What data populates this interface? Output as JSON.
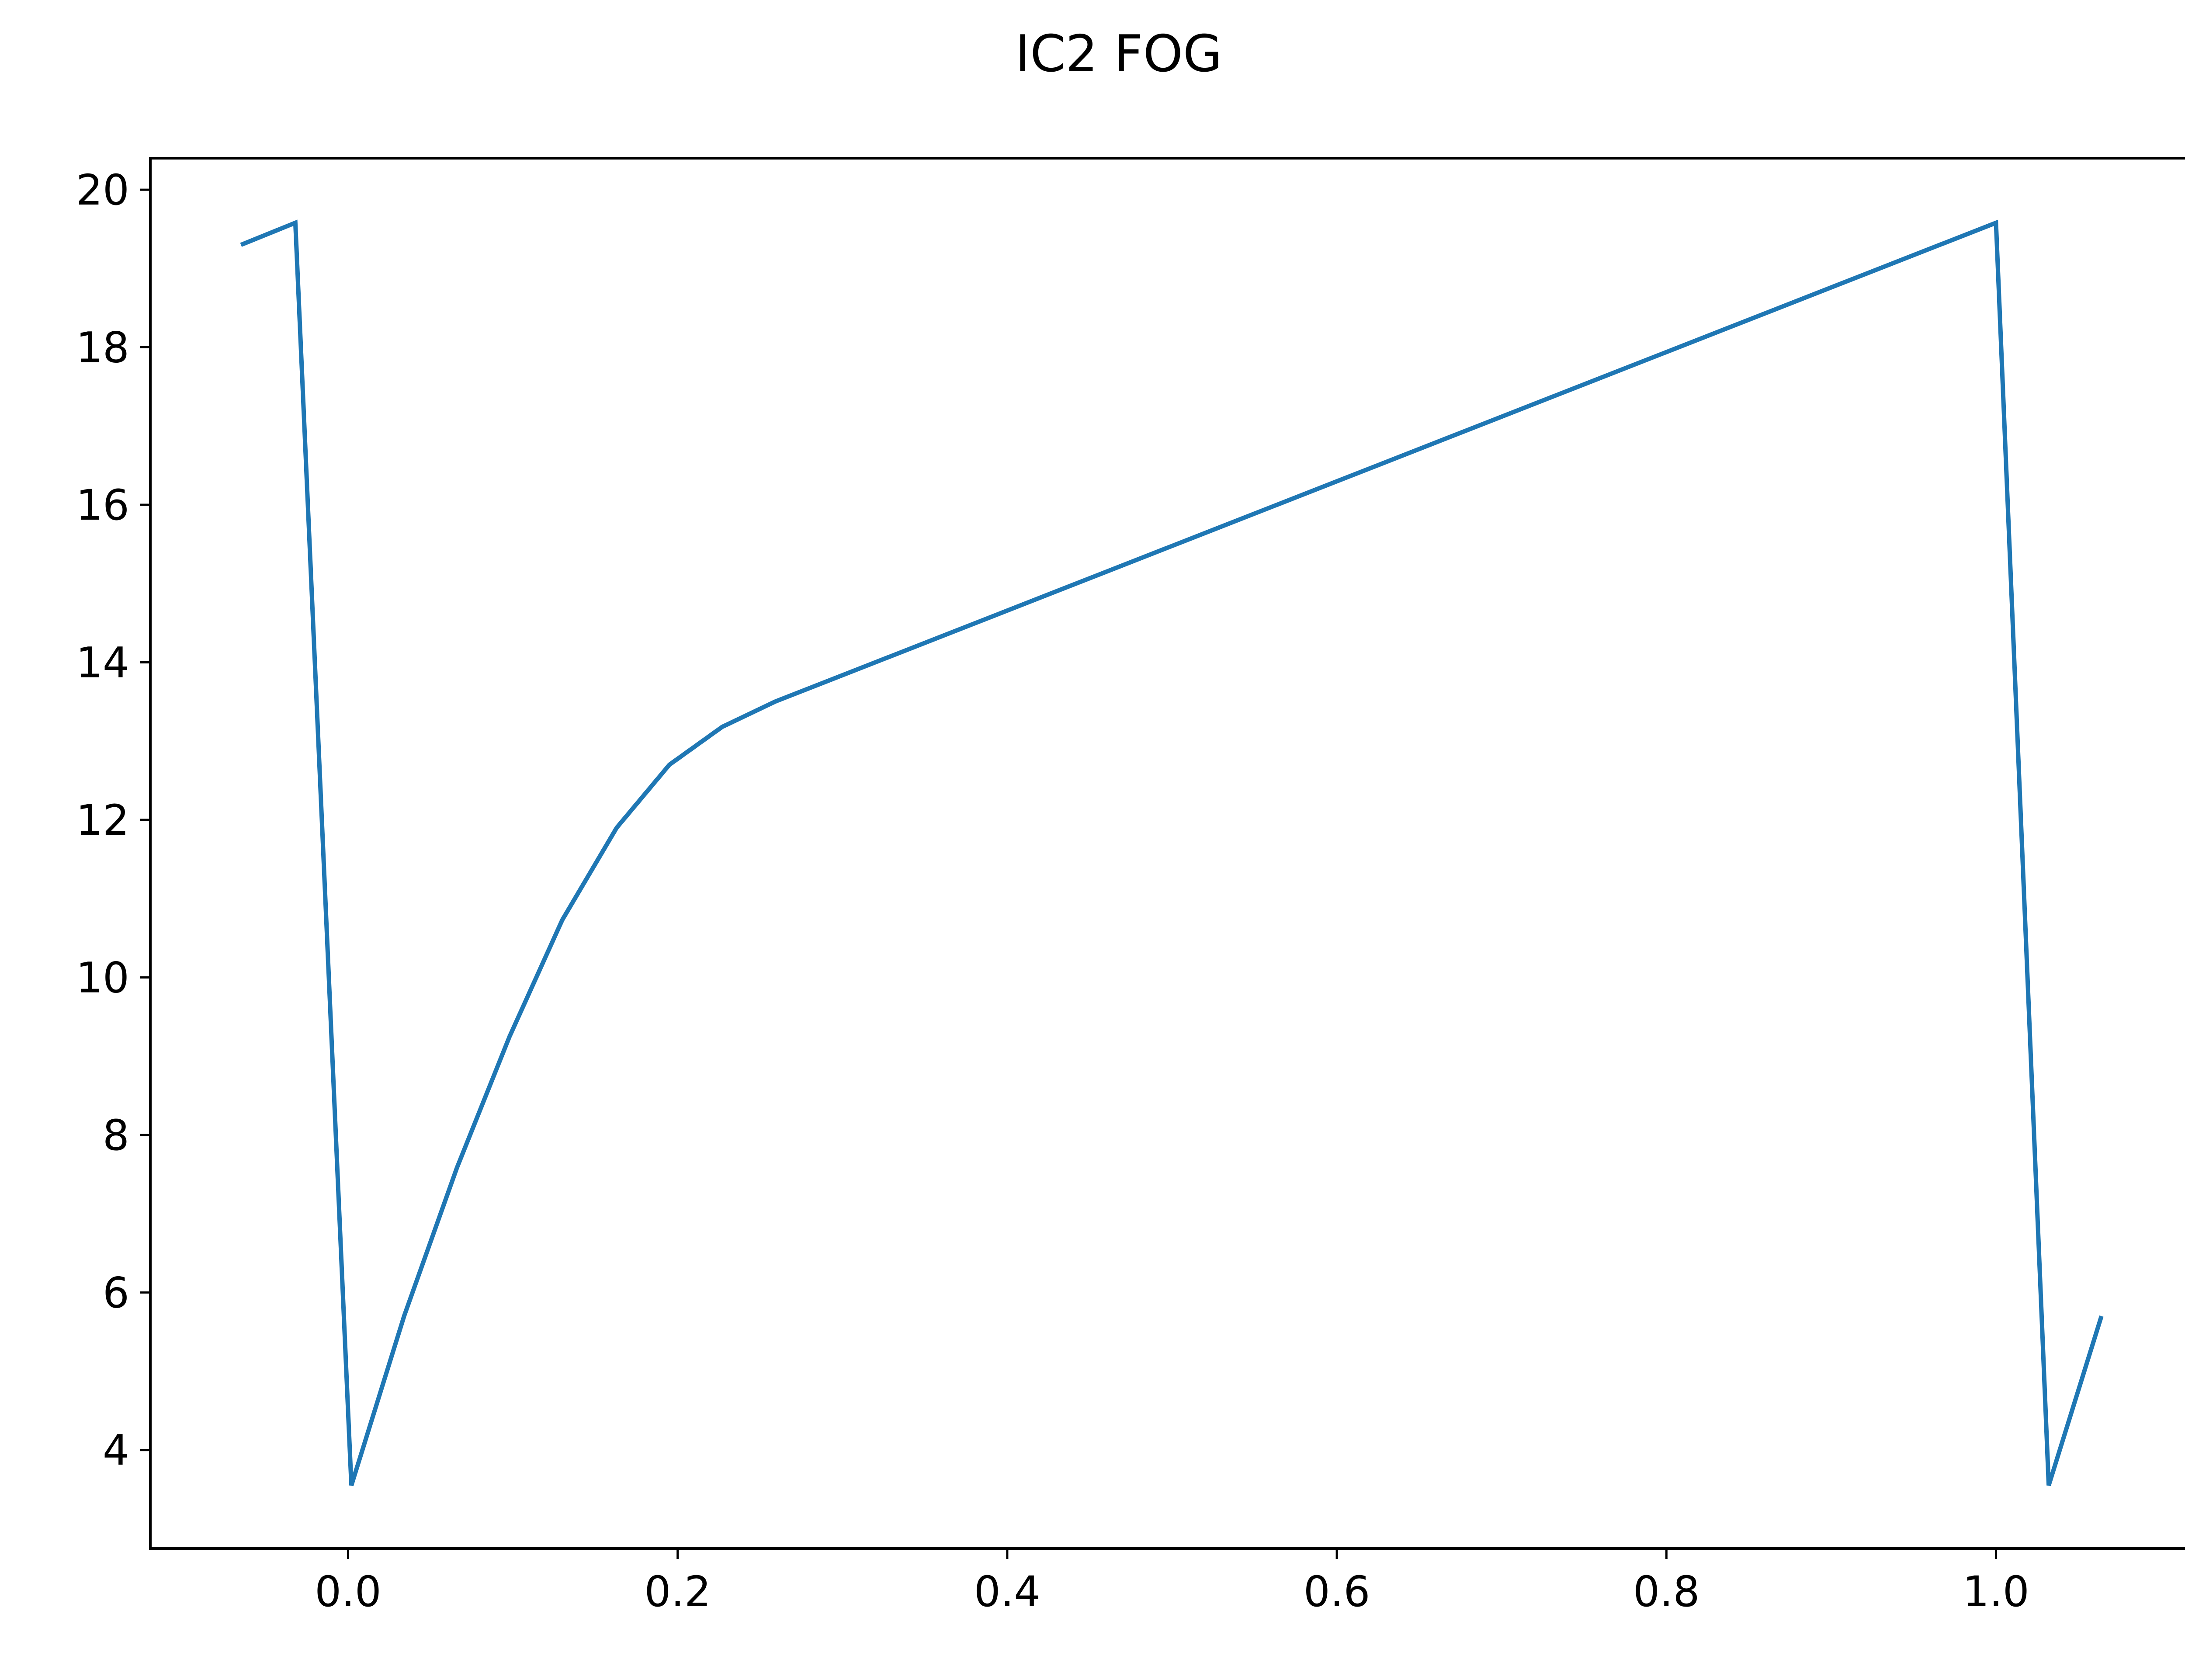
{
  "chart_data": {
    "type": "line",
    "title": "IC2 FOG",
    "xlabel": "",
    "ylabel": "",
    "xlim": [
      -0.12,
      1.12
    ],
    "ylim": [
      2.75,
      20.4
    ],
    "xticks": [
      0.0,
      0.2,
      0.4,
      0.6,
      0.8,
      1.0
    ],
    "xtick_labels": [
      "0.0",
      "0.2",
      "0.4",
      "0.6",
      "0.8",
      "1.0"
    ],
    "yticks": [
      4,
      6,
      8,
      10,
      12,
      14,
      16,
      18,
      20
    ],
    "ytick_labels": [
      "4",
      "6",
      "8",
      "10",
      "12",
      "14",
      "16",
      "18",
      "20"
    ],
    "grid": false,
    "series": [
      {
        "color": "#1f77b4",
        "x": [
          -0.065,
          -0.032,
          0.002,
          0.034,
          0.066,
          0.098,
          0.13,
          0.163,
          0.195,
          0.227,
          0.259,
          1.0,
          1.032,
          1.064
        ],
        "y": [
          19.3,
          19.58,
          3.55,
          5.7,
          7.58,
          9.25,
          10.73,
          11.9,
          12.7,
          13.18,
          13.5,
          19.58,
          3.55,
          5.7
        ]
      }
    ]
  }
}
